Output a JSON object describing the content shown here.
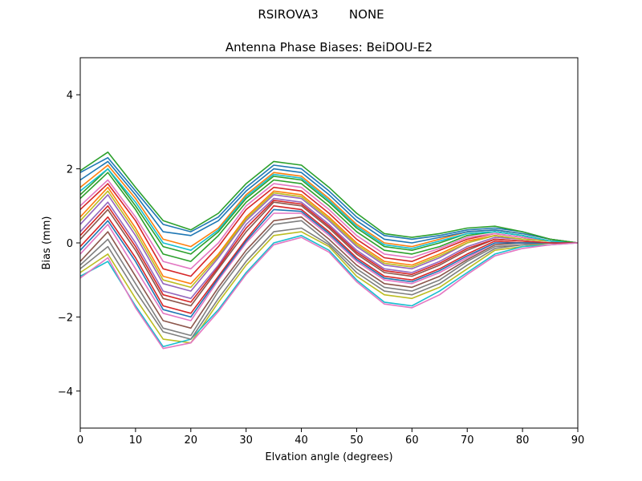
{
  "figure": {
    "suptitle": "RSIROVA3        NONE"
  },
  "chart_data": {
    "type": "line",
    "title": "Antenna Phase Biases: BeiDOU-E2",
    "xlabel": "Elvation angle (degrees)",
    "ylabel": "Bias (mm)",
    "xlim": [
      0,
      90
    ],
    "ylim": [
      -5,
      5
    ],
    "xticks": [
      0,
      10,
      20,
      30,
      40,
      50,
      60,
      70,
      80,
      90
    ],
    "yticks": [
      -4,
      -2,
      0,
      2,
      4
    ],
    "grid": false,
    "legend": "none",
    "x": [
      0,
      5,
      10,
      15,
      20,
      25,
      30,
      35,
      40,
      45,
      50,
      55,
      60,
      65,
      70,
      75,
      80,
      85,
      90
    ],
    "series": [
      {
        "color": "#1f77b4",
        "values": [
          1.9,
          2.3,
          1.4,
          0.5,
          0.3,
          0.7,
          1.5,
          2.1,
          2.0,
          1.4,
          0.7,
          0.2,
          0.1,
          0.2,
          0.35,
          0.4,
          0.3,
          0.1,
          0.0
        ]
      },
      {
        "color": "#ff7f0e",
        "values": [
          1.5,
          2.1,
          1.2,
          0.1,
          -0.1,
          0.4,
          1.3,
          1.9,
          1.8,
          1.2,
          0.5,
          0.0,
          -0.1,
          0.1,
          0.3,
          0.35,
          0.25,
          0.1,
          0.0
        ]
      },
      {
        "color": "#2ca02c",
        "values": [
          1.2,
          1.9,
          0.9,
          -0.3,
          -0.5,
          0.2,
          1.1,
          1.7,
          1.6,
          1.0,
          0.3,
          -0.2,
          -0.3,
          -0.1,
          0.2,
          0.3,
          0.2,
          0.05,
          0.0
        ]
      },
      {
        "color": "#d62728",
        "values": [
          0.9,
          1.6,
          0.6,
          -0.7,
          -0.9,
          -0.1,
          0.9,
          1.5,
          1.4,
          0.8,
          0.1,
          -0.4,
          -0.5,
          -0.2,
          0.1,
          0.25,
          0.15,
          0.05,
          0.0
        ]
      },
      {
        "color": "#9467bd",
        "values": [
          0.5,
          1.3,
          0.2,
          -1.1,
          -1.3,
          -0.4,
          0.6,
          1.3,
          1.2,
          0.6,
          -0.1,
          -0.6,
          -0.7,
          -0.4,
          0.0,
          0.2,
          0.1,
          0.05,
          0.0
        ]
      },
      {
        "color": "#8c564b",
        "values": [
          0.1,
          0.9,
          -0.2,
          -1.5,
          -1.7,
          -0.7,
          0.3,
          1.1,
          1.0,
          0.4,
          -0.3,
          -0.8,
          -0.9,
          -0.6,
          -0.2,
          0.1,
          0.05,
          0.0,
          0.0
        ]
      },
      {
        "color": "#e377c2",
        "values": [
          -0.3,
          0.5,
          -0.7,
          -1.9,
          -2.1,
          -1.0,
          0.0,
          0.8,
          0.8,
          0.2,
          -0.5,
          -1.0,
          -1.1,
          -0.8,
          -0.4,
          0.0,
          0.0,
          0.0,
          0.0
        ]
      },
      {
        "color": "#7f7f7f",
        "values": [
          -0.6,
          0.1,
          -1.1,
          -2.3,
          -2.5,
          -1.3,
          -0.3,
          0.5,
          0.6,
          0.0,
          -0.7,
          -1.2,
          -1.3,
          -1.0,
          -0.5,
          -0.1,
          -0.05,
          0.0,
          0.0
        ]
      },
      {
        "color": "#bcbd22",
        "values": [
          -0.8,
          -0.3,
          -1.5,
          -2.6,
          -2.7,
          -1.6,
          -0.6,
          0.2,
          0.3,
          -0.1,
          -0.9,
          -1.4,
          -1.5,
          -1.2,
          -0.7,
          -0.2,
          -0.1,
          0.0,
          0.0
        ]
      },
      {
        "color": "#17becf",
        "values": [
          -0.9,
          -0.5,
          -1.7,
          -2.8,
          -2.6,
          -1.8,
          -0.8,
          0.0,
          0.2,
          -0.2,
          -1.0,
          -1.6,
          -1.7,
          -1.3,
          -0.8,
          -0.3,
          -0.1,
          -0.05,
          0.0
        ]
      },
      {
        "color": "#1f77b4",
        "values": [
          1.7,
          2.2,
          1.3,
          0.3,
          0.2,
          0.6,
          1.4,
          2.0,
          1.9,
          1.3,
          0.6,
          0.1,
          0.0,
          0.15,
          0.3,
          0.35,
          0.25,
          0.1,
          0.0
        ]
      },
      {
        "color": "#ff7f0e",
        "values": [
          0.7,
          1.5,
          0.4,
          -0.9,
          -1.1,
          -0.3,
          0.7,
          1.4,
          1.3,
          0.7,
          0.0,
          -0.5,
          -0.6,
          -0.3,
          0.05,
          0.2,
          0.1,
          0.05,
          0.0
        ]
      },
      {
        "color": "#2ca02c",
        "values": [
          1.3,
          2.0,
          1.0,
          -0.1,
          -0.3,
          0.3,
          1.2,
          1.8,
          1.7,
          1.1,
          0.4,
          -0.1,
          -0.2,
          0.0,
          0.25,
          0.3,
          0.2,
          0.05,
          0.0
        ]
      },
      {
        "color": "#d62728",
        "values": [
          -0.1,
          0.7,
          -0.4,
          -1.7,
          -1.9,
          -0.9,
          0.1,
          1.0,
          0.9,
          0.3,
          -0.4,
          -0.9,
          -1.0,
          -0.7,
          -0.3,
          0.05,
          0.0,
          0.0,
          0.0
        ]
      },
      {
        "color": "#9467bd",
        "values": [
          0.3,
          1.1,
          0.0,
          -1.3,
          -1.5,
          -0.6,
          0.5,
          1.2,
          1.1,
          0.5,
          -0.2,
          -0.7,
          -0.8,
          -0.5,
          -0.1,
          0.15,
          0.1,
          0.05,
          0.0
        ]
      },
      {
        "color": "#8c564b",
        "values": [
          -0.5,
          0.3,
          -0.9,
          -2.1,
          -2.3,
          -1.2,
          -0.2,
          0.6,
          0.7,
          0.1,
          -0.6,
          -1.1,
          -1.2,
          -0.9,
          -0.45,
          -0.05,
          0.0,
          0.0,
          0.0
        ]
      },
      {
        "color": "#e377c2",
        "values": [
          1.0,
          1.7,
          0.7,
          -0.5,
          -0.7,
          0.0,
          1.0,
          1.6,
          1.5,
          0.9,
          0.2,
          -0.3,
          -0.4,
          -0.15,
          0.15,
          0.25,
          0.15,
          0.05,
          0.0
        ]
      },
      {
        "color": "#7f7f7f",
        "values": [
          -0.7,
          -0.1,
          -1.3,
          -2.4,
          -2.6,
          -1.5,
          -0.5,
          0.3,
          0.4,
          -0.05,
          -0.8,
          -1.3,
          -1.4,
          -1.1,
          -0.6,
          -0.15,
          -0.05,
          0.0,
          0.0
        ]
      },
      {
        "color": "#bcbd22",
        "values": [
          0.6,
          1.4,
          0.3,
          -1.0,
          -1.2,
          -0.35,
          0.65,
          1.35,
          1.25,
          0.65,
          -0.05,
          -0.55,
          -0.65,
          -0.35,
          0.0,
          0.2,
          0.1,
          0.05,
          0.0
        ]
      },
      {
        "color": "#17becf",
        "values": [
          1.4,
          2.0,
          1.1,
          0.0,
          -0.2,
          0.35,
          1.25,
          1.85,
          1.75,
          1.15,
          0.45,
          -0.05,
          -0.15,
          0.05,
          0.25,
          0.3,
          0.2,
          0.05,
          0.0
        ]
      },
      {
        "color": "#2ca02c",
        "values": [
          1.95,
          2.45,
          1.5,
          0.6,
          0.35,
          0.8,
          1.6,
          2.2,
          2.1,
          1.5,
          0.8,
          0.25,
          0.15,
          0.25,
          0.4,
          0.45,
          0.3,
          0.1,
          0.0
        ]
      },
      {
        "color": "#1f77b4",
        "values": [
          -0.2,
          0.6,
          -0.5,
          -1.8,
          -2.0,
          -0.95,
          0.05,
          0.9,
          0.85,
          0.25,
          -0.45,
          -0.95,
          -1.05,
          -0.75,
          -0.35,
          0.0,
          0.0,
          0.0,
          0.0
        ]
      },
      {
        "color": "#d62728",
        "values": [
          0.2,
          1.0,
          -0.1,
          -1.4,
          -1.6,
          -0.65,
          0.4,
          1.15,
          1.05,
          0.45,
          -0.25,
          -0.75,
          -0.85,
          -0.55,
          -0.15,
          0.1,
          0.05,
          0.0,
          0.0
        ]
      },
      {
        "color": "#e377c2",
        "values": [
          -0.95,
          -0.4,
          -1.75,
          -2.85,
          -2.7,
          -1.85,
          -0.85,
          -0.05,
          0.15,
          -0.25,
          -1.05,
          -1.65,
          -1.75,
          -1.4,
          -0.85,
          -0.35,
          -0.15,
          -0.05,
          0.0
        ]
      }
    ]
  }
}
